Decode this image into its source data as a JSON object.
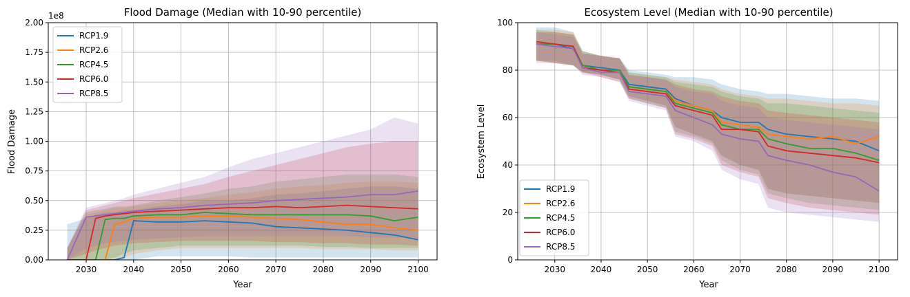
{
  "figure": {
    "background": "#ffffff"
  },
  "palette": {
    "RCP1.9": "#1f77b4",
    "RCP2.6": "#ff7f0e",
    "RCP4.5": "#2ca02c",
    "RCP6.0": "#d62728",
    "RCP8.5": "#9467bd"
  },
  "chart_data": [
    {
      "type": "line",
      "title": "Flood Damage (Median with 10-90 percentile)",
      "xlabel": "Year",
      "ylabel": "Flood Damage",
      "offset_label": "1e8",
      "xlim": [
        2022,
        2104
      ],
      "ylim": [
        0,
        2.0
      ],
      "xticks": [
        2030,
        2040,
        2050,
        2060,
        2070,
        2080,
        2090,
        2100
      ],
      "xtick_labels": [
        "2030",
        "2040",
        "2050",
        "2060",
        "2070",
        "2080",
        "2090",
        "2100"
      ],
      "yticks": [
        0,
        0.25,
        0.5,
        0.75,
        1.0,
        1.25,
        1.5,
        1.75,
        2.0
      ],
      "ytick_labels": [
        "0.00",
        "0.25",
        "0.50",
        "0.75",
        "1.00",
        "1.25",
        "1.50",
        "1.75",
        "2.00"
      ],
      "grid": true,
      "legend": "upper left",
      "band": "10-90 percentile shaded",
      "x": [
        2026,
        2030,
        2032,
        2034,
        2036,
        2038,
        2040,
        2045,
        2050,
        2055,
        2060,
        2065,
        2070,
        2075,
        2080,
        2085,
        2090,
        2095,
        2100
      ],
      "series": [
        {
          "name": "RCP1.9",
          "median": [
            0,
            0,
            0,
            0,
            0,
            0.02,
            0.33,
            0.32,
            0.32,
            0.33,
            0.32,
            0.31,
            0.28,
            0.27,
            0.26,
            0.25,
            0.23,
            0.21,
            0.17
          ],
          "p10": [
            0,
            0,
            0,
            0,
            0,
            0,
            0,
            0.03,
            0.03,
            0.03,
            0.03,
            0.02,
            0.02,
            0.02,
            0.02,
            0.02,
            0.02,
            0.02,
            0.02
          ],
          "p90": [
            0.3,
            0.35,
            0.38,
            0.4,
            0.4,
            0.42,
            0.42,
            0.45,
            0.47,
            0.5,
            0.5,
            0.52,
            0.55,
            0.56,
            0.58,
            0.6,
            0.62,
            0.62,
            0.6
          ]
        },
        {
          "name": "RCP2.6",
          "median": [
            0,
            0,
            0,
            0,
            0.3,
            0.32,
            0.35,
            0.36,
            0.36,
            0.37,
            0.37,
            0.36,
            0.35,
            0.34,
            0.32,
            0.3,
            0.3,
            0.27,
            0.25
          ],
          "p10": [
            0,
            0,
            0,
            0,
            0,
            0.02,
            0.05,
            0.08,
            0.1,
            0.1,
            0.1,
            0.1,
            0.1,
            0.1,
            0.09,
            0.09,
            0.09,
            0.08,
            0.08
          ],
          "p90": [
            0.1,
            0.38,
            0.4,
            0.42,
            0.44,
            0.44,
            0.45,
            0.48,
            0.5,
            0.52,
            0.55,
            0.57,
            0.6,
            0.62,
            0.63,
            0.65,
            0.66,
            0.66,
            0.65
          ]
        },
        {
          "name": "RCP4.5",
          "median": [
            0,
            0,
            0,
            0.34,
            0.35,
            0.35,
            0.37,
            0.38,
            0.38,
            0.4,
            0.39,
            0.38,
            0.38,
            0.38,
            0.38,
            0.38,
            0.37,
            0.33,
            0.36
          ],
          "p10": [
            0,
            0,
            0,
            0,
            0.02,
            0.05,
            0.08,
            0.1,
            0.12,
            0.12,
            0.12,
            0.12,
            0.12,
            0.12,
            0.11,
            0.11,
            0.1,
            0.1,
            0.1
          ],
          "p90": [
            0.1,
            0.4,
            0.42,
            0.43,
            0.45,
            0.45,
            0.46,
            0.5,
            0.53,
            0.56,
            0.6,
            0.62,
            0.66,
            0.68,
            0.7,
            0.72,
            0.72,
            0.72,
            0.7
          ]
        },
        {
          "name": "RCP6.0",
          "median": [
            0,
            0,
            0.35,
            0.37,
            0.38,
            0.39,
            0.4,
            0.41,
            0.42,
            0.43,
            0.44,
            0.44,
            0.45,
            0.44,
            0.45,
            0.46,
            0.45,
            0.44,
            0.43
          ],
          "p10": [
            0,
            0.05,
            0.08,
            0.1,
            0.12,
            0.13,
            0.14,
            0.15,
            0.16,
            0.16,
            0.16,
            0.16,
            0.15,
            0.15,
            0.14,
            0.14,
            0.13,
            0.13,
            0.12
          ],
          "p90": [
            0.1,
            0.42,
            0.44,
            0.46,
            0.48,
            0.5,
            0.52,
            0.56,
            0.6,
            0.64,
            0.7,
            0.75,
            0.8,
            0.85,
            0.9,
            0.95,
            0.98,
            1.0,
            1.0
          ]
        },
        {
          "name": "RCP8.5",
          "median": [
            0,
            0.36,
            0.37,
            0.38,
            0.39,
            0.4,
            0.41,
            0.43,
            0.44,
            0.46,
            0.47,
            0.48,
            0.5,
            0.51,
            0.52,
            0.53,
            0.55,
            0.55,
            0.58
          ],
          "p10": [
            0,
            0.1,
            0.12,
            0.14,
            0.15,
            0.16,
            0.17,
            0.18,
            0.19,
            0.2,
            0.2,
            0.2,
            0.2,
            0.2,
            0.2,
            0.2,
            0.19,
            0.19,
            0.18
          ],
          "p90": [
            0.1,
            0.44,
            0.46,
            0.48,
            0.5,
            0.52,
            0.55,
            0.6,
            0.65,
            0.7,
            0.78,
            0.85,
            0.9,
            0.95,
            1.0,
            1.05,
            1.1,
            1.2,
            1.15
          ]
        }
      ]
    },
    {
      "type": "line",
      "title": "Ecosystem Level (Median with 10-90 percentile)",
      "xlabel": "Year",
      "ylabel": "Ecosystem Level",
      "xlim": [
        2022,
        2104
      ],
      "ylim": [
        0,
        100
      ],
      "xticks": [
        2030,
        2040,
        2050,
        2060,
        2070,
        2080,
        2090,
        2100
      ],
      "xtick_labels": [
        "2030",
        "2040",
        "2050",
        "2060",
        "2070",
        "2080",
        "2090",
        "2100"
      ],
      "yticks": [
        0,
        20,
        40,
        60,
        80,
        100
      ],
      "ytick_labels": [
        "0",
        "20",
        "40",
        "60",
        "80",
        "100"
      ],
      "grid": true,
      "legend": "lower left",
      "band": "10-90 percentile shaded",
      "x": [
        2026,
        2030,
        2034,
        2036,
        2040,
        2044,
        2046,
        2050,
        2054,
        2056,
        2060,
        2064,
        2066,
        2070,
        2074,
        2076,
        2080,
        2085,
        2090,
        2095,
        2100
      ],
      "series": [
        {
          "name": "RCP1.9",
          "median": [
            91,
            91,
            89,
            82,
            81,
            80,
            74,
            73,
            72,
            68,
            65,
            63,
            60,
            58,
            58,
            55,
            53,
            52,
            51,
            50,
            46
          ],
          "p10": [
            84,
            84,
            82,
            79,
            78,
            76,
            69,
            67,
            65,
            56,
            53,
            50,
            44,
            40,
            38,
            30,
            28,
            27,
            26,
            25,
            24
          ],
          "p90": [
            98,
            98,
            96,
            88,
            86,
            85,
            80,
            79,
            78,
            77,
            77,
            76,
            74,
            72,
            71,
            70,
            70,
            69,
            68,
            68,
            67
          ]
        },
        {
          "name": "RCP2.6",
          "median": [
            92,
            91,
            90,
            82,
            80,
            79,
            73,
            72,
            71,
            67,
            65,
            63,
            58,
            57,
            56,
            53,
            52,
            51,
            52,
            49,
            52
          ],
          "p10": [
            84,
            83,
            82,
            79,
            78,
            76,
            69,
            67,
            65,
            56,
            53,
            50,
            44,
            40,
            38,
            30,
            28,
            27,
            26,
            25,
            24
          ],
          "p90": [
            97,
            97,
            96,
            88,
            86,
            85,
            79,
            78,
            77,
            76,
            75,
            74,
            72,
            70,
            69,
            68,
            68,
            67,
            66,
            66,
            65
          ]
        },
        {
          "name": "RCP4.5",
          "median": [
            91,
            91,
            90,
            82,
            80,
            80,
            73,
            72,
            71,
            66,
            64,
            62,
            57,
            55,
            55,
            51,
            49,
            47,
            47,
            45,
            42
          ],
          "p10": [
            84,
            83,
            82,
            79,
            78,
            76,
            68,
            66,
            64,
            54,
            52,
            49,
            42,
            38,
            36,
            28,
            26,
            24,
            23,
            22,
            21
          ],
          "p90": [
            97,
            96,
            95,
            88,
            86,
            85,
            79,
            78,
            77,
            75,
            74,
            73,
            71,
            69,
            68,
            66,
            66,
            65,
            64,
            63,
            62
          ]
        },
        {
          "name": "RCP6.0",
          "median": [
            92,
            91,
            90,
            81,
            80,
            79,
            72,
            71,
            70,
            65,
            63,
            61,
            55,
            55,
            54,
            48,
            46,
            45,
            44,
            43,
            41
          ],
          "p10": [
            84,
            83,
            82,
            79,
            77,
            75,
            68,
            66,
            64,
            53,
            51,
            48,
            40,
            37,
            35,
            26,
            24,
            22,
            21,
            20,
            19
          ],
          "p90": [
            96,
            96,
            95,
            87,
            86,
            85,
            78,
            77,
            76,
            74,
            72,
            71,
            69,
            67,
            66,
            63,
            62,
            61,
            60,
            59,
            58
          ]
        },
        {
          "name": "RCP8.5",
          "median": [
            91,
            90,
            89,
            81,
            79,
            79,
            71,
            70,
            69,
            63,
            60,
            57,
            53,
            51,
            50,
            44,
            42,
            40,
            37,
            35,
            29
          ],
          "p10": [
            83,
            83,
            82,
            78,
            77,
            75,
            67,
            65,
            63,
            52,
            50,
            46,
            38,
            34,
            32,
            22,
            20,
            19,
            18,
            17,
            16
          ],
          "p90": [
            96,
            95,
            94,
            87,
            86,
            85,
            78,
            77,
            76,
            73,
            71,
            70,
            67,
            65,
            64,
            60,
            59,
            58,
            57,
            56,
            55
          ]
        }
      ]
    }
  ]
}
